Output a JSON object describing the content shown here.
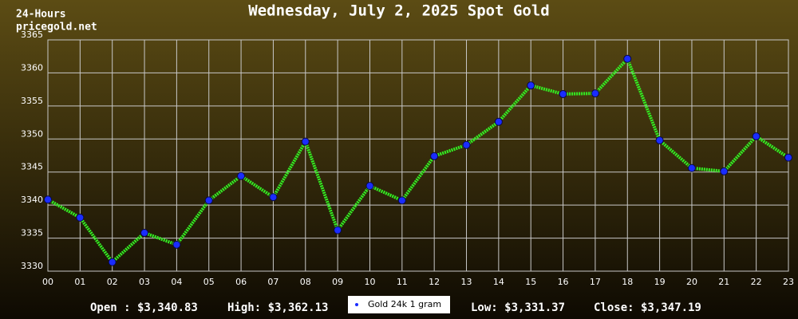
{
  "chart_data": {
    "type": "line",
    "title": "Wednesday, July 2, 2025 Spot Gold",
    "corner_lines": [
      "24-Hours",
      "pricegold.net"
    ],
    "categories": [
      "00",
      "01",
      "02",
      "03",
      "04",
      "05",
      "06",
      "07",
      "08",
      "09",
      "10",
      "11",
      "12",
      "13",
      "14",
      "15",
      "16",
      "17",
      "18",
      "19",
      "20",
      "21",
      "22",
      "23"
    ],
    "series": [
      {
        "name": "Gold 24k 1 gram",
        "color": "#33ee22",
        "values": [
          3340.83,
          3338.1,
          3331.37,
          3335.8,
          3334.0,
          3340.7,
          3344.4,
          3341.2,
          3349.6,
          3336.2,
          3342.9,
          3340.7,
          3347.4,
          3349.1,
          3352.6,
          3358.1,
          3356.8,
          3356.9,
          3362.13,
          3349.8,
          3345.6,
          3345.1,
          3350.4,
          3347.19
        ]
      }
    ],
    "ylim": [
      3330,
      3365
    ],
    "yticks": [
      3330,
      3335,
      3340,
      3345,
      3350,
      3355,
      3360,
      3365
    ],
    "grid": true,
    "stats": [
      "Open : $3,340.83",
      "High: $3,362.13",
      "Low: $3,331.37",
      "Close: $3,347.19"
    ]
  }
}
